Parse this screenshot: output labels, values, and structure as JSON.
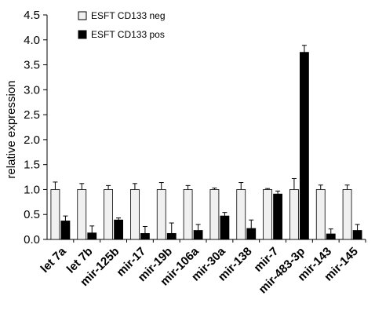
{
  "chart_data": {
    "type": "bar",
    "title": "",
    "xlabel": "",
    "ylabel": "relative expression",
    "ylim": [
      0,
      4.5
    ],
    "yticks": [
      "0.0",
      "0.5",
      "1.0",
      "1.5",
      "2.0",
      "2.5",
      "3.0",
      "3.5",
      "4.0",
      "4.5"
    ],
    "grid": false,
    "legend_position": "top-left",
    "categories": [
      "let 7a",
      "let 7b",
      "mir-125b",
      "mir-17",
      "mir-19b",
      "mir-106a",
      "mir-30a",
      "mir-138",
      "mir-7",
      "mir-483-3p",
      "mir-143",
      "mir-145"
    ],
    "series": [
      {
        "name": "ESFT CD133 neg",
        "color": "#f0f0f0",
        "values": [
          1.0,
          1.0,
          1.0,
          1.0,
          1.0,
          1.0,
          1.0,
          1.0,
          1.0,
          1.0,
          1.0,
          1.0
        ],
        "errors": [
          0.15,
          0.12,
          0.08,
          0.12,
          0.14,
          0.08,
          0.03,
          0.14,
          0.02,
          0.22,
          0.09,
          0.09
        ]
      },
      {
        "name": "ESFT CD133 pos",
        "color": "#000000",
        "values": [
          0.37,
          0.13,
          0.39,
          0.12,
          0.12,
          0.18,
          0.47,
          0.22,
          0.91,
          3.75,
          0.11,
          0.18
        ],
        "errors": [
          0.1,
          0.14,
          0.04,
          0.14,
          0.21,
          0.12,
          0.07,
          0.17,
          0.06,
          0.14,
          0.1,
          0.12
        ]
      }
    ]
  }
}
